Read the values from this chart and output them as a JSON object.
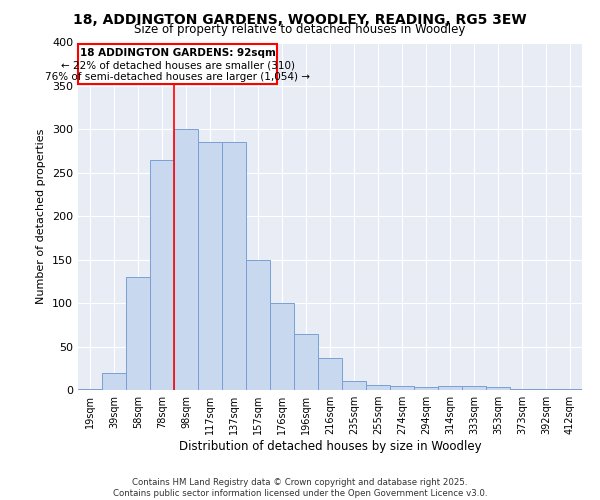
{
  "title": "18, ADDINGTON GARDENS, WOODLEY, READING, RG5 3EW",
  "subtitle": "Size of property relative to detached houses in Woodley",
  "xlabel": "Distribution of detached houses by size in Woodley",
  "ylabel": "Number of detached properties",
  "bar_color": "#c8d8ee",
  "bar_edge_color": "#7a9fd4",
  "background_color": "#e8edf5",
  "categories": [
    "19sqm",
    "39sqm",
    "58sqm",
    "78sqm",
    "98sqm",
    "117sqm",
    "137sqm",
    "157sqm",
    "176sqm",
    "196sqm",
    "216sqm",
    "235sqm",
    "255sqm",
    "274sqm",
    "294sqm",
    "314sqm",
    "333sqm",
    "353sqm",
    "373sqm",
    "392sqm",
    "412sqm"
  ],
  "values": [
    1,
    20,
    130,
    265,
    300,
    285,
    285,
    150,
    100,
    65,
    37,
    10,
    6,
    5,
    3,
    5,
    5,
    3,
    1,
    1,
    1
  ],
  "annotation_line1": "18 ADDINGTON GARDENS: 92sqm",
  "annotation_line2": "← 22% of detached houses are smaller (310)",
  "annotation_line3": "76% of semi-detached houses are larger (1,054) →",
  "vline_x_idx": 3.5,
  "ylim": [
    0,
    400
  ],
  "yticks": [
    0,
    50,
    100,
    150,
    200,
    250,
    300,
    350,
    400
  ],
  "footnote1": "Contains HM Land Registry data © Crown copyright and database right 2025.",
  "footnote2": "Contains public sector information licensed under the Open Government Licence v3.0."
}
